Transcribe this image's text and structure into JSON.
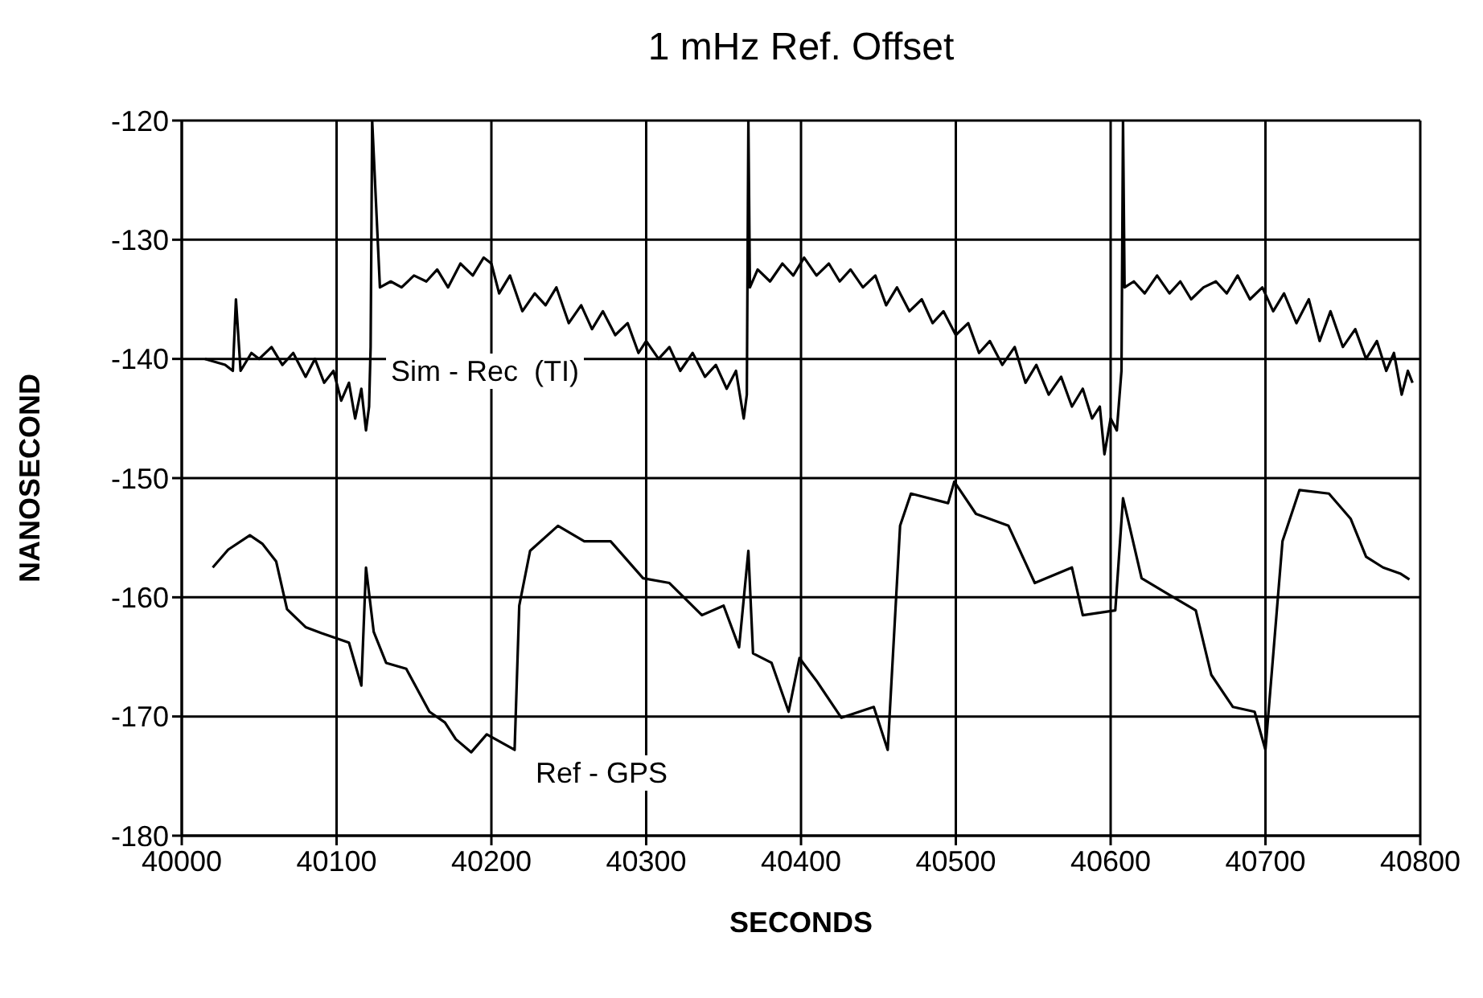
{
  "chart_data": {
    "type": "line",
    "title": "1 mHz Ref. Offset",
    "xlabel": "SECONDS",
    "ylabel": "NANOSECOND",
    "xlim": [
      40000,
      40800
    ],
    "xticks": [
      40000,
      40100,
      40200,
      40300,
      40400,
      40500,
      40600,
      40700,
      40800
    ],
    "ylim": [
      -180,
      -120
    ],
    "yticks": [
      -180,
      -170,
      -160,
      -150,
      -140,
      -130,
      -120
    ],
    "grid": true,
    "marker": "none",
    "line_style": "solid",
    "series": [
      {
        "color": "#000000",
        "x": [
          40015,
          40028,
          40033,
          40035,
          40038,
          40045,
          40050,
          40058,
          40065,
          40072,
          40080,
          40086,
          40092,
          40098,
          40103,
          40108,
          40112,
          40116,
          40119,
          40121,
          40122,
          40123,
          40128,
          40135,
          40142,
          40150,
          40158,
          40165,
          40172,
          40180,
          40188,
          40195,
          40200,
          40205,
          40212,
          40220,
          40228,
          40235,
          40242,
          40250,
          40258,
          40265,
          40272,
          40280,
          40288,
          40295,
          40300,
          40308,
          40315,
          40322,
          40330,
          40338,
          40345,
          40352,
          40358,
          40363,
          40365,
          40366,
          40367,
          40372,
          40380,
          40388,
          40395,
          40402,
          40410,
          40418,
          40425,
          40432,
          40440,
          40448,
          40455,
          40462,
          40470,
          40478,
          40485,
          40492,
          40500,
          40508,
          40515,
          40522,
          40530,
          40538,
          40545,
          40552,
          40560,
          40568,
          40575,
          40582,
          40588,
          40593,
          40596,
          40600,
          40604,
          40607,
          40608,
          40609,
          40615,
          40622,
          40630,
          40638,
          40645,
          40652,
          40660,
          40668,
          40675,
          40682,
          40690,
          40698,
          40705,
          40712,
          40720,
          40728,
          40735,
          40742,
          40750,
          40758,
          40765,
          40772,
          40778,
          40783,
          40788,
          40792,
          40795
        ],
        "values": [
          -140,
          -140.5,
          -141,
          -135,
          -141,
          -139.5,
          -140,
          -139,
          -140.5,
          -139.5,
          -141.5,
          -140,
          -142,
          -141,
          -143.5,
          -142,
          -145,
          -142.5,
          -146,
          -144,
          -139,
          -120,
          -134,
          -133.5,
          -134,
          -133,
          -133.5,
          -132.5,
          -134,
          -132,
          -133,
          -131.5,
          -132,
          -134.5,
          -133,
          -136,
          -134.5,
          -135.5,
          -134,
          -137,
          -135.5,
          -137.5,
          -136,
          -138,
          -137,
          -139.5,
          -138.5,
          -140,
          -139,
          -141,
          -139.5,
          -141.5,
          -140.5,
          -142.5,
          -141,
          -145,
          -143,
          -120,
          -134,
          -132.5,
          -133.5,
          -132,
          -133,
          -131.5,
          -133,
          -132,
          -133.5,
          -132.5,
          -134,
          -133,
          -135.5,
          -134,
          -136,
          -135,
          -137,
          -136,
          -138,
          -137,
          -139.5,
          -138.5,
          -140.5,
          -139,
          -142,
          -140.5,
          -143,
          -141.5,
          -144,
          -142.5,
          -145,
          -144,
          -148,
          -145,
          -146,
          -141,
          -120,
          -134,
          -133.5,
          -134.5,
          -133,
          -134.5,
          -133.5,
          -135,
          -134,
          -133.5,
          -134.5,
          -133,
          -135,
          -134,
          -136,
          -134.5,
          -137,
          -135,
          -138.5,
          -136,
          -139,
          -137.5,
          -140,
          -138.5,
          -141,
          -139.5,
          -143,
          -141,
          -142
        ]
      },
      {
        "color": "#000000",
        "x": [
          40020,
          40030,
          40044,
          40052,
          40061,
          40068,
          40080,
          40090,
          40099,
          40108,
          40116,
          40119,
          40124,
          40132,
          40145,
          40160,
          40170,
          40177,
          40187,
          40197,
          40215,
          40218,
          40225,
          40243,
          40260,
          40277,
          40298,
          40315,
          40336,
          40350,
          40360,
          40366,
          40369,
          40381,
          40392,
          40399,
          40410,
          40426,
          40447,
          40456,
          40464,
          40471,
          40495,
          40499,
          40513,
          40534,
          40551,
          40575,
          40582,
          40603,
          40608,
          40620,
          40638,
          40655,
          40665,
          40679,
          40693,
          40700,
          40711,
          40722,
          40741,
          40755,
          40765,
          40776,
          40787,
          40793
        ],
        "values": [
          -157.5,
          -156,
          -154.8,
          -155.5,
          -157,
          -161,
          -162.5,
          -163,
          -163.4,
          -163.8,
          -167.4,
          -157.5,
          -162.9,
          -165.5,
          -166,
          -169.6,
          -170.5,
          -171.9,
          -173,
          -171.5,
          -172.8,
          -160.7,
          -156.1,
          -154,
          -155.3,
          -155.3,
          -158.4,
          -158.8,
          -161.5,
          -160.7,
          -164.2,
          -156.1,
          -164.7,
          -165.5,
          -169.6,
          -165.1,
          -167,
          -170.1,
          -169.2,
          -172.8,
          -154,
          -151.3,
          -152.1,
          -150.3,
          -153,
          -154,
          -158.8,
          -157.5,
          -161.5,
          -161.1,
          -151.7,
          -158.4,
          -159.8,
          -161.1,
          -166.5,
          -169.2,
          -169.6,
          -172.8,
          -155.3,
          -151,
          -151.3,
          -153.4,
          -156.6,
          -157.5,
          -158,
          -158.5
        ]
      }
    ],
    "annotations": [
      "Sim - Rec  (TI)",
      "Ref - GPS"
    ]
  }
}
